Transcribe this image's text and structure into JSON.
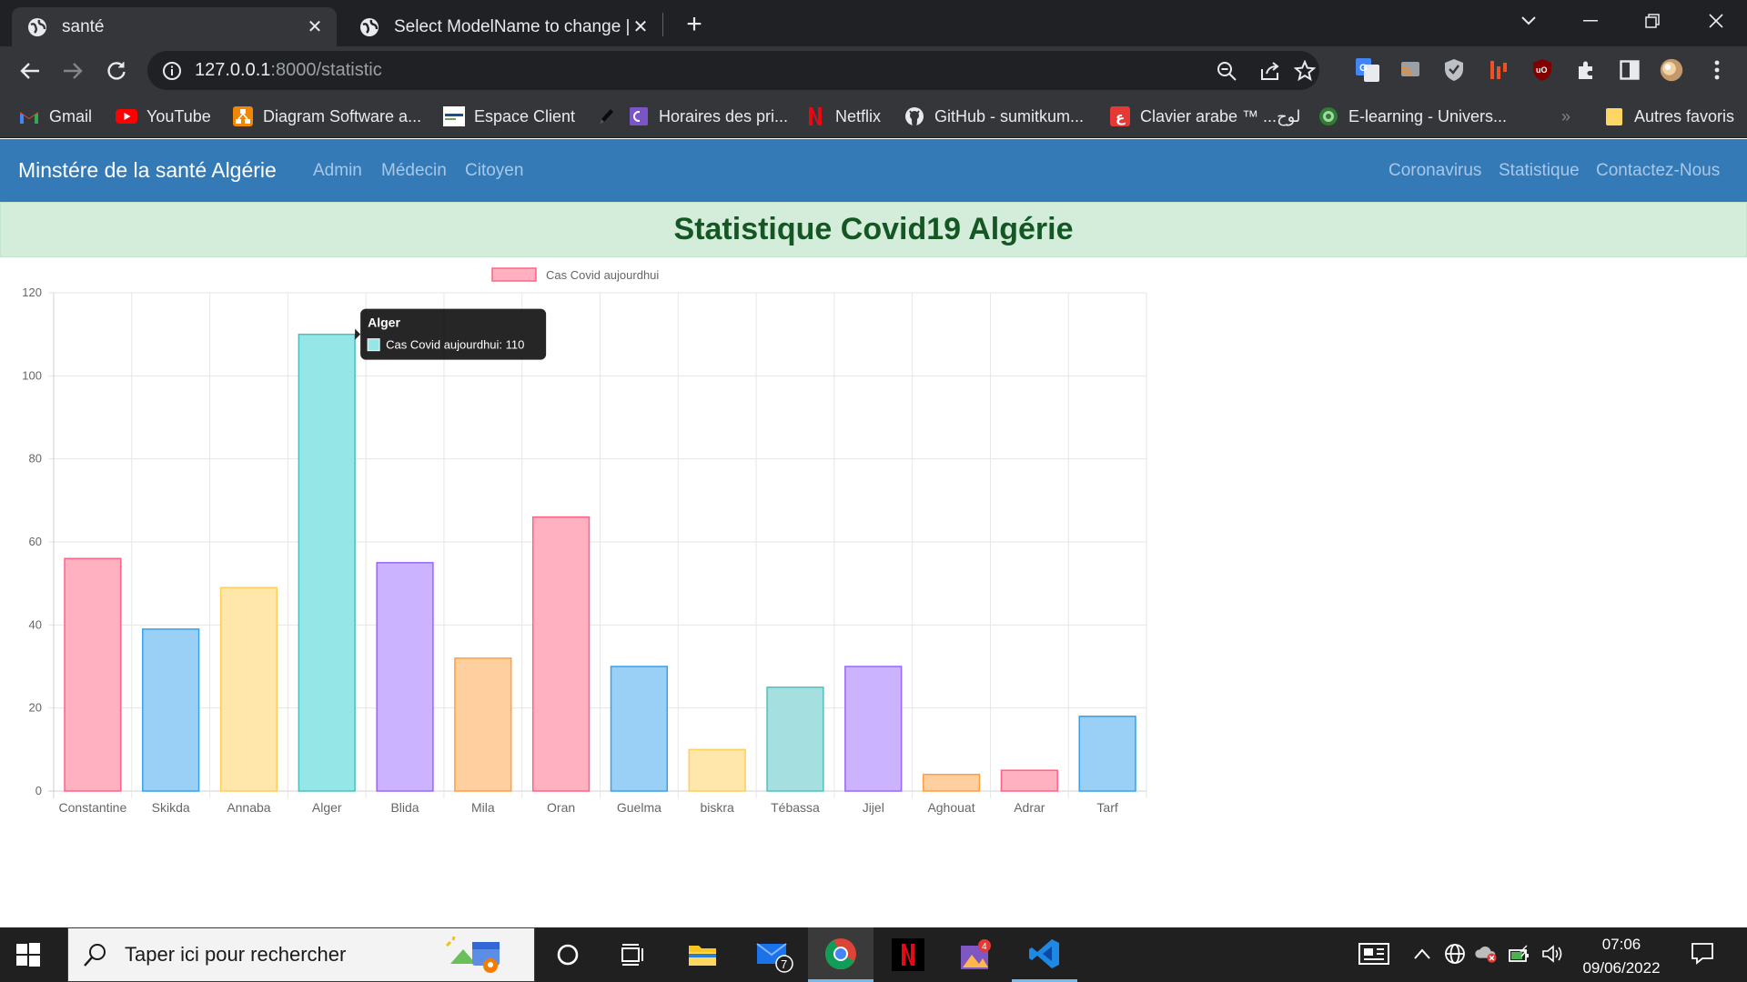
{
  "browser": {
    "tabs": [
      {
        "title": "santé",
        "active": true
      },
      {
        "title": "Select ModelName to change | D",
        "active": false
      }
    ],
    "url": {
      "host": "127.0.0.1",
      "path": ":8000/statistic"
    },
    "bookmarks": [
      {
        "label": "Gmail",
        "icon": "gmail-icon"
      },
      {
        "label": "YouTube",
        "icon": "youtube-icon"
      },
      {
        "label": "Diagram Software a...",
        "icon": "diagram-icon"
      },
      {
        "label": "Espace Client",
        "icon": "espace-icon"
      },
      {
        "label": "",
        "icon": "pen-icon"
      },
      {
        "label": "Horaires des pri...",
        "icon": "horaires-icon"
      },
      {
        "label": "Netflix",
        "icon": "netflix-icon"
      },
      {
        "label": "GitHub - sumitkum...",
        "icon": "github-icon"
      },
      {
        "label": "Clavier arabe ™ ...لوح",
        "icon": "clavier-icon"
      },
      {
        "label": "E-learning - Univers...",
        "icon": "elearning-icon"
      }
    ],
    "overflow": "»",
    "other_bookmarks": "Autres favoris"
  },
  "site": {
    "brand": "Minstére de la santé Algérie",
    "left_links": [
      "Admin",
      "Médecin",
      "Citoyen"
    ],
    "right_links": [
      "Coronavirus",
      "Statistique",
      "Contactez-Nous"
    ],
    "heading": "Statistique Covid19 Algérie"
  },
  "chart_data": {
    "type": "bar",
    "categories": [
      "Constantine",
      "Skikda",
      "Annaba",
      "Alger",
      "Blida",
      "Mila",
      "Oran",
      "Guelma",
      "biskra",
      "Tébassa",
      "Jijel",
      "Aghouat",
      "Adrar",
      "Tarf"
    ],
    "series": [
      {
        "name": "Cas Covid aujourdhui",
        "values": [
          56,
          39,
          49,
          110,
          55,
          32,
          66,
          30,
          10,
          25,
          30,
          4,
          5,
          18
        ]
      }
    ],
    "ylim": [
      0,
      120
    ],
    "yticks": [
      0,
      20,
      40,
      60,
      80,
      100,
      120
    ],
    "grid": true,
    "legend": "top",
    "bar_fills": [
      "#ffb1c1",
      "#9ad0f5",
      "#ffe6aa",
      "#95e6e6",
      "#ccb3ff",
      "#ffcf9f",
      "#ffb1c1",
      "#9ad0f5",
      "#ffe6aa",
      "#a5dfdf",
      "#ccb3ff",
      "#ffcf9f",
      "#ffb1c1",
      "#9ad0f5"
    ],
    "bar_borders": [
      "#ff6384",
      "#36a2eb",
      "#ffce56",
      "#4bc0c0",
      "#9966ff",
      "#ff9f40",
      "#ff6384",
      "#36a2eb",
      "#ffce56",
      "#4bc0c0",
      "#9966ff",
      "#ff9f40",
      "#ff6384",
      "#36a2eb"
    ],
    "legend_color": "#ffb1c1",
    "tooltip": {
      "title": "Alger",
      "label": "Cas Covid aujourdhui: 110",
      "swatch": "#95e6e6"
    }
  },
  "taskbar": {
    "search_placeholder": "Taper ici pour rechercher",
    "mail_badge": "7",
    "time": "07:06",
    "date": "09/06/2022"
  }
}
